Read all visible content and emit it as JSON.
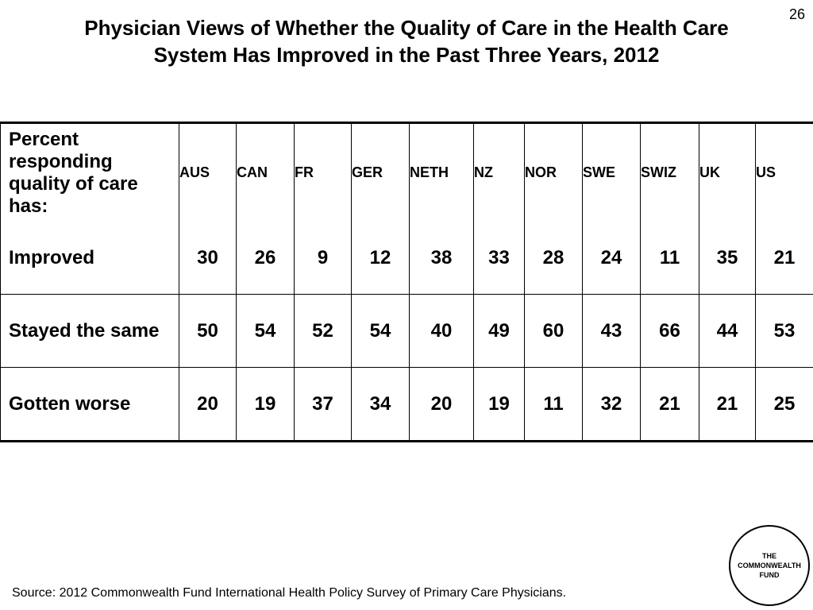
{
  "slide_number": "26",
  "title_lines": [
    "Physician Views of Whether the Quality of Care in the Health Care",
    "System Has Improved in the Past Three Years, 2012"
  ],
  "source": "Source: 2012 Commonwealth Fund International Health Policy Survey of Primary Care Physicians.",
  "logo_lines": [
    "THE",
    "COMMONWEALTH",
    "FUND"
  ],
  "chart_data": {
    "type": "table",
    "title": "Physician Views of Whether the Quality of Care in the Health Care System Has Improved in the Past Three Years, 2012",
    "corner_label_lines": [
      "Percent",
      "responding",
      "quality of care",
      "has:"
    ],
    "columns": [
      "AUS",
      "CAN",
      "FR",
      "GER",
      "NETH",
      "NZ",
      "NOR",
      "SWE",
      "SWIZ",
      "UK",
      "US"
    ],
    "rows": [
      {
        "label": "Improved",
        "values": [
          30,
          26,
          9,
          12,
          38,
          33,
          28,
          24,
          11,
          35,
          21
        ]
      },
      {
        "label": "Stayed the same",
        "values": [
          50,
          54,
          52,
          54,
          40,
          49,
          60,
          43,
          66,
          44,
          53
        ]
      },
      {
        "label": "Gotten worse",
        "values": [
          20,
          19,
          37,
          34,
          20,
          19,
          11,
          32,
          21,
          21,
          25
        ]
      }
    ]
  }
}
